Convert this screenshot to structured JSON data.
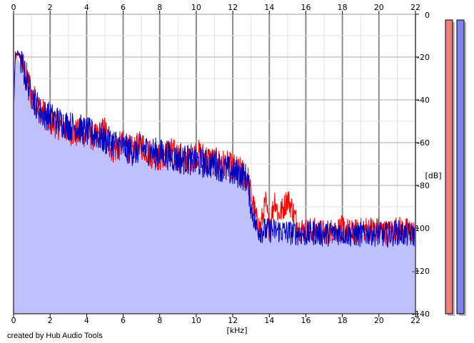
{
  "chart_data": {
    "type": "area",
    "title": "",
    "xlabel": "[kHz]",
    "ylabel": "[dB]",
    "xlim": [
      0,
      22
    ],
    "ylim": [
      -140,
      0
    ],
    "x_ticks": [
      "0",
      "2",
      "4",
      "6",
      "8",
      "10",
      "12",
      "14",
      "16",
      "18",
      "20",
      "22"
    ],
    "y_ticks": [
      "0",
      "-20",
      "-40",
      "-60",
      "-80",
      "-100",
      "-120",
      "-140"
    ],
    "grid": true,
    "legend": "none",
    "series": [
      {
        "color": "#c0c0ff",
        "style": "filled-area",
        "x": [
          0,
          0.15,
          0.3,
          0.5,
          0.75,
          1,
          1.5,
          2,
          2.5,
          3,
          3.5,
          4,
          4.5,
          5,
          5.5,
          6,
          6.5,
          7,
          7.5,
          8,
          8.5,
          9,
          9.5,
          10,
          10.5,
          11,
          11.5,
          12,
          12.5,
          12.8,
          13,
          13.5,
          14,
          14.5,
          15,
          15.5,
          16,
          17,
          18,
          19,
          20,
          21,
          22
        ],
        "values": [
          -46,
          -20,
          -22,
          -28,
          -34,
          -40,
          -45,
          -48,
          -51,
          -52,
          -54,
          -56,
          -57,
          -58,
          -60,
          -62,
          -64,
          -65,
          -66,
          -67,
          -69,
          -70,
          -71,
          -72,
          -73,
          -74,
          -76,
          -77,
          -78,
          -80,
          -86,
          -98,
          -100,
          -101,
          -102,
          -103,
          -103,
          -103,
          -103,
          -103,
          -103,
          -104,
          -104
        ]
      },
      {
        "color": "#ff0000",
        "style": "line",
        "x": [
          0,
          0.1,
          0.3,
          0.5,
          0.75,
          1,
          1.5,
          2,
          2.5,
          3,
          3.5,
          4,
          4.5,
          5,
          5.3,
          5.5,
          6,
          6.5,
          7,
          7.5,
          8,
          8.5,
          9,
          9.5,
          10,
          10.5,
          11,
          11.5,
          12,
          12.5,
          12.8,
          13,
          13.3,
          13.5,
          13.8,
          14,
          14.3,
          14.5,
          14.8,
          15,
          15.3,
          15.6,
          16,
          16.5,
          17,
          17.5,
          18,
          18.5,
          19,
          19.5,
          20,
          20.5,
          21,
          21.5,
          22
        ],
        "values": [
          -46,
          -20,
          -18,
          -24,
          -30,
          -38,
          -45,
          -50,
          -52,
          -54,
          -56,
          -55,
          -58,
          -54,
          -62,
          -63,
          -61,
          -64,
          -61,
          -65,
          -67,
          -64,
          -66,
          -68,
          -65,
          -67,
          -69,
          -70,
          -72,
          -74,
          -76,
          -84,
          -96,
          -100,
          -88,
          -100,
          -86,
          -94,
          -90,
          -86,
          -92,
          -100,
          -101,
          -101,
          -102,
          -101,
          -100,
          -102,
          -101,
          -100,
          -101,
          -102,
          -100,
          -101,
          -102
        ]
      },
      {
        "color": "#0000c0",
        "style": "line",
        "x": [
          0,
          0.1,
          0.3,
          0.5,
          0.75,
          1,
          1.5,
          2,
          2.5,
          3,
          3.5,
          4,
          4.5,
          5,
          5.5,
          6,
          6.5,
          7,
          7.5,
          8,
          8.5,
          9,
          9.5,
          10,
          10.5,
          11,
          11.5,
          12,
          12.5,
          12.8,
          13,
          13.3,
          13.5,
          14,
          14.5,
          15,
          15.5,
          16,
          16.5,
          17,
          17.5,
          18,
          18.5,
          19,
          19.5,
          20,
          20.5,
          21,
          21.5,
          22
        ],
        "values": [
          -46,
          -19,
          -18,
          -25,
          -32,
          -38,
          -46,
          -48,
          -50,
          -52,
          -53,
          -55,
          -56,
          -59,
          -60,
          -62,
          -64,
          -63,
          -64,
          -65,
          -66,
          -68,
          -68,
          -69,
          -70,
          -70,
          -72,
          -74,
          -75,
          -77,
          -90,
          -100,
          -101,
          -101,
          -101,
          -102,
          -102,
          -103,
          -102,
          -103,
          -102,
          -102,
          -103,
          -103,
          -102,
          -103,
          -103,
          -102,
          -103,
          -103
        ]
      }
    ],
    "level_meters": [
      {
        "color": "#f08080",
        "level_db": 0
      },
      {
        "color": "#8080f0",
        "level_db": 0
      }
    ]
  },
  "footer": {
    "credit": "created by Hub Audio Tools"
  }
}
